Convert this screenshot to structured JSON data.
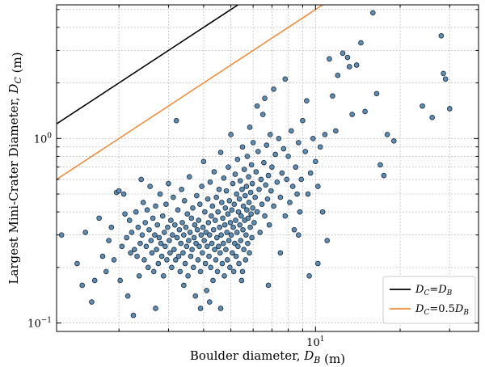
{
  "chart_data": {
    "type": "scatter",
    "title": "",
    "xlabel": "Boulder diameter, D_B (m)",
    "ylabel": "Largest Mini-Crater Diameter, D_C (m)",
    "xscale": "log",
    "yscale": "log",
    "xlim": [
      1.2,
      38
    ],
    "ylim": [
      0.09,
      5.3
    ],
    "x_tick_labels": [
      {
        "value": 10,
        "base": "10",
        "exp": "1"
      }
    ],
    "y_tick_labels": [
      {
        "value": 0.1,
        "base": "10",
        "exp": "−1"
      },
      {
        "value": 1,
        "base": "10",
        "exp": "0"
      }
    ],
    "grid": true,
    "legend_position": "lower-right",
    "series": [
      {
        "kind": "line",
        "name": "D_C = D_B",
        "label_parts": [
          "D",
          "C",
          "=",
          "D",
          "B",
          ""
        ],
        "color": "#000000",
        "slope": 1
      },
      {
        "kind": "line",
        "name": "D_C = 0.5D_B",
        "label_parts": [
          "D",
          "C",
          "=0.5",
          "D",
          "B",
          ""
        ],
        "color": "#f28e3b",
        "slope": 0.5
      },
      {
        "kind": "points",
        "color": "#5b8db5",
        "edge": "#1a2a3a",
        "points": [
          [
            1.25,
            0.3
          ],
          [
            1.42,
            0.21
          ],
          [
            1.48,
            0.16
          ],
          [
            1.52,
            0.31
          ],
          [
            1.6,
            0.13
          ],
          [
            1.64,
            0.17
          ],
          [
            1.7,
            0.37
          ],
          [
            1.75,
            0.23
          ],
          [
            1.8,
            0.19
          ],
          [
            1.84,
            0.28
          ],
          [
            1.88,
            0.33
          ],
          [
            1.92,
            0.22
          ],
          [
            1.96,
            0.51
          ],
          [
            2.0,
            0.52
          ],
          [
            2.02,
            0.17
          ],
          [
            2.05,
            0.26
          ],
          [
            2.08,
            0.5
          ],
          [
            2.1,
            0.39
          ],
          [
            2.13,
            0.29
          ],
          [
            2.15,
            0.14
          ],
          [
            2.18,
            0.36
          ],
          [
            2.2,
            0.24
          ],
          [
            2.22,
            0.31
          ],
          [
            2.25,
            0.11
          ],
          [
            2.27,
            0.25
          ],
          [
            2.3,
            0.4
          ],
          [
            2.32,
            0.23
          ],
          [
            2.34,
            0.33
          ],
          [
            2.36,
            0.18
          ],
          [
            2.38,
            0.27
          ],
          [
            2.4,
            0.6
          ],
          [
            2.42,
            0.3
          ],
          [
            2.44,
            0.45
          ],
          [
            2.46,
            0.22
          ],
          [
            2.48,
            0.35
          ],
          [
            2.5,
            0.26
          ],
          [
            2.52,
            0.41
          ],
          [
            2.54,
            0.2
          ],
          [
            2.56,
            0.32
          ],
          [
            2.58,
            0.55
          ],
          [
            2.6,
            0.28
          ],
          [
            2.62,
            0.24
          ],
          [
            2.64,
            0.37
          ],
          [
            2.66,
            0.19
          ],
          [
            2.68,
            0.3
          ],
          [
            2.7,
            0.43
          ],
          [
            2.72,
            0.25
          ],
          [
            2.74,
            0.34
          ],
          [
            2.76,
            0.21
          ],
          [
            2.78,
            0.29
          ],
          [
            2.8,
            0.5
          ],
          [
            2.82,
            0.27
          ],
          [
            2.84,
            0.23
          ],
          [
            2.86,
            0.38
          ],
          [
            2.88,
            0.18
          ],
          [
            2.9,
            0.31
          ],
          [
            2.92,
            0.26
          ],
          [
            2.94,
            0.44
          ],
          [
            2.96,
            0.22
          ],
          [
            2.98,
            0.33
          ],
          [
            3.0,
            0.57
          ],
          [
            3.02,
            0.28
          ],
          [
            3.04,
            0.24
          ],
          [
            3.06,
            0.36
          ],
          [
            3.08,
            0.2
          ],
          [
            3.1,
            0.3
          ],
          [
            3.12,
            0.48
          ],
          [
            3.14,
            0.25
          ],
          [
            3.16,
            0.34
          ],
          [
            3.18,
            0.22
          ],
          [
            3.2,
            1.25
          ],
          [
            3.22,
            0.29
          ],
          [
            3.24,
            0.41
          ],
          [
            3.26,
            0.23
          ],
          [
            3.28,
            0.32
          ],
          [
            3.3,
            0.19
          ],
          [
            3.32,
            0.27
          ],
          [
            3.34,
            0.53
          ],
          [
            3.36,
            0.35
          ],
          [
            3.38,
            0.24
          ],
          [
            3.4,
            0.3
          ],
          [
            3.42,
            0.46
          ],
          [
            3.44,
            0.21
          ],
          [
            3.46,
            0.33
          ],
          [
            3.48,
            0.26
          ],
          [
            3.5,
            0.39
          ],
          [
            3.52,
            0.18
          ],
          [
            3.54,
            0.28
          ],
          [
            3.56,
            0.62
          ],
          [
            3.58,
            0.31
          ],
          [
            3.6,
            0.23
          ],
          [
            3.62,
            0.37
          ],
          [
            3.64,
            0.25
          ],
          [
            3.66,
            0.42
          ],
          [
            3.68,
            0.2
          ],
          [
            3.7,
            0.29
          ],
          [
            3.72,
            0.34
          ],
          [
            3.74,
            0.14
          ],
          [
            3.76,
            0.27
          ],
          [
            3.78,
            0.49
          ],
          [
            3.8,
            0.32
          ],
          [
            3.82,
            0.22
          ],
          [
            3.84,
            0.36
          ],
          [
            3.86,
            0.26
          ],
          [
            3.88,
            0.44
          ],
          [
            3.9,
            0.19
          ],
          [
            3.92,
            0.3
          ],
          [
            3.94,
            0.55
          ],
          [
            3.96,
            0.24
          ],
          [
            3.98,
            0.33
          ],
          [
            4.0,
            0.75
          ],
          [
            4.02,
            0.28
          ],
          [
            4.04,
            0.4
          ],
          [
            4.06,
            0.21
          ],
          [
            4.08,
            0.31
          ],
          [
            4.1,
            0.15
          ],
          [
            4.12,
            0.26
          ],
          [
            4.14,
            0.47
          ],
          [
            4.16,
            0.35
          ],
          [
            4.18,
            0.23
          ],
          [
            4.2,
            0.3
          ],
          [
            4.22,
            0.58
          ],
          [
            4.24,
            0.2
          ],
          [
            4.26,
            0.38
          ],
          [
            4.28,
            0.27
          ],
          [
            4.3,
            0.43
          ],
          [
            4.32,
            0.17
          ],
          [
            4.34,
            0.32
          ],
          [
            4.36,
            0.66
          ],
          [
            4.38,
            0.25
          ],
          [
            4.4,
            0.36
          ],
          [
            4.42,
            0.22
          ],
          [
            4.44,
            0.48
          ],
          [
            4.46,
            0.29
          ],
          [
            4.48,
            0.19
          ],
          [
            4.5,
            0.4
          ],
          [
            4.52,
            0.26
          ],
          [
            4.54,
            0.53
          ],
          [
            4.56,
            0.33
          ],
          [
            4.58,
            0.24
          ],
          [
            4.6,
            0.84
          ],
          [
            4.62,
            0.3
          ],
          [
            4.64,
            0.45
          ],
          [
            4.66,
            0.21
          ],
          [
            4.68,
            0.37
          ],
          [
            4.7,
            0.27
          ],
          [
            4.72,
            0.61
          ],
          [
            4.74,
            0.18
          ],
          [
            4.76,
            0.34
          ],
          [
            4.78,
            0.42
          ],
          [
            4.8,
            0.25
          ],
          [
            4.82,
            0.52
          ],
          [
            4.84,
            0.31
          ],
          [
            4.86,
            0.22
          ],
          [
            4.88,
            0.39
          ],
          [
            4.9,
            0.7
          ],
          [
            4.92,
            0.28
          ],
          [
            4.94,
            0.46
          ],
          [
            4.96,
            0.2
          ],
          [
            4.98,
            0.35
          ],
          [
            5.0,
            1.05
          ],
          [
            5.02,
            0.3
          ],
          [
            5.04,
            0.41
          ],
          [
            5.06,
            0.24
          ],
          [
            5.08,
            0.57
          ],
          [
            5.1,
            0.33
          ],
          [
            5.12,
            0.19
          ],
          [
            5.14,
            0.44
          ],
          [
            5.16,
            0.27
          ],
          [
            5.18,
            0.64
          ],
          [
            5.2,
            0.36
          ],
          [
            5.22,
            0.23
          ],
          [
            5.24,
            0.5
          ],
          [
            5.26,
            0.31
          ],
          [
            5.28,
            0.77
          ],
          [
            5.3,
            0.26
          ],
          [
            5.32,
            0.4
          ],
          [
            5.34,
            0.21
          ],
          [
            5.36,
            0.47
          ],
          [
            5.38,
            0.34
          ],
          [
            5.4,
            0.59
          ],
          [
            5.42,
            0.28
          ],
          [
            5.44,
            0.38
          ],
          [
            5.46,
            0.17
          ],
          [
            5.48,
            0.53
          ],
          [
            5.5,
            0.9
          ],
          [
            5.52,
            0.32
          ],
          [
            5.54,
            0.43
          ],
          [
            5.56,
            0.25
          ],
          [
            5.58,
            0.68
          ],
          [
            5.6,
            0.36
          ],
          [
            5.62,
            0.49
          ],
          [
            5.64,
            0.22
          ],
          [
            5.66,
            0.3
          ],
          [
            5.68,
            0.55
          ],
          [
            5.7,
            0.41
          ],
          [
            5.72,
            0.8
          ],
          [
            5.74,
            0.27
          ],
          [
            5.76,
            0.37
          ],
          [
            5.78,
            0.62
          ],
          [
            5.8,
            0.45
          ],
          [
            5.82,
            0.24
          ],
          [
            5.84,
            1.15
          ],
          [
            5.86,
            0.33
          ],
          [
            5.88,
            0.51
          ],
          [
            5.9,
            0.39
          ],
          [
            5.92,
            0.72
          ],
          [
            5.94,
            0.29
          ],
          [
            5.96,
            0.57
          ],
          [
            5.98,
            0.42
          ],
          [
            6.0,
            0.95
          ],
          [
            6.05,
            0.35
          ],
          [
            6.1,
            0.48
          ],
          [
            6.15,
            0.66
          ],
          [
            6.2,
            0.4
          ],
          [
            6.25,
            0.85
          ],
          [
            6.3,
            0.53
          ],
          [
            6.35,
            0.31
          ],
          [
            6.4,
            0.6
          ],
          [
            6.45,
            0.44
          ],
          [
            6.5,
            1.35
          ],
          [
            6.55,
            0.74
          ],
          [
            6.6,
            0.38
          ],
          [
            6.65,
            0.56
          ],
          [
            6.7,
            0.92
          ],
          [
            6.75,
            0.47
          ],
          [
            6.8,
            0.63
          ],
          [
            6.85,
            0.34
          ],
          [
            6.9,
            1.05
          ],
          [
            6.95,
            0.52
          ],
          [
            7.0,
            0.7
          ],
          [
            7.1,
            0.43
          ],
          [
            7.2,
            0.82
          ],
          [
            7.3,
            0.58
          ],
          [
            7.4,
            1.0
          ],
          [
            7.5,
            0.48
          ],
          [
            7.6,
            0.65
          ],
          [
            7.7,
            0.88
          ],
          [
            7.8,
            0.38
          ],
          [
            7.9,
            0.6
          ],
          [
            8.0,
            0.8
          ],
          [
            8.1,
            0.45
          ],
          [
            8.2,
            1.1
          ],
          [
            8.3,
            0.55
          ],
          [
            8.4,
            0.32
          ],
          [
            8.5,
            0.7
          ],
          [
            8.6,
            0.5
          ],
          [
            8.7,
            0.95
          ],
          [
            8.8,
            0.4
          ],
          [
            8.9,
            0.6
          ],
          [
            9.0,
            1.25
          ],
          [
            9.2,
            0.85
          ],
          [
            9.4,
            0.5
          ],
          [
            9.6,
            0.65
          ],
          [
            9.8,
            1.0
          ],
          [
            10.0,
            0.75
          ],
          [
            10.2,
            0.55
          ],
          [
            10.4,
            0.9
          ],
          [
            10.6,
            0.4
          ],
          [
            10.8,
            1.05
          ],
          [
            6.2,
            1.5
          ],
          [
            6.6,
            1.65
          ],
          [
            7.1,
            1.85
          ],
          [
            7.8,
            2.1
          ],
          [
            9.3,
            1.6
          ],
          [
            10.2,
            0.21
          ],
          [
            11.0,
            0.28
          ],
          [
            11.2,
            2.7
          ],
          [
            11.5,
            1.7
          ],
          [
            12.0,
            2.2
          ],
          [
            12.5,
            2.9
          ],
          [
            13.0,
            2.75
          ],
          [
            13.5,
            1.35
          ],
          [
            14.0,
            2.5
          ],
          [
            14.5,
            3.3
          ],
          [
            15.0,
            1.4
          ],
          [
            16.0,
            4.8
          ],
          [
            16.5,
            1.75
          ],
          [
            17.0,
            0.72
          ],
          [
            17.5,
            0.63
          ],
          [
            18.0,
            1.05
          ],
          [
            19.0,
            0.97
          ],
          [
            24.0,
            1.5
          ],
          [
            26.0,
            1.3
          ],
          [
            28.0,
            3.6
          ],
          [
            28.5,
            2.25
          ],
          [
            29.0,
            2.1
          ],
          [
            30.0,
            1.45
          ],
          [
            13.2,
            2.45
          ],
          [
            11.8,
            1.1
          ],
          [
            4.2,
            0.13
          ],
          [
            4.6,
            0.12
          ],
          [
            3.9,
            0.12
          ],
          [
            5.5,
            0.19
          ],
          [
            6.8,
            0.16
          ],
          [
            7.5,
            0.24
          ],
          [
            8.7,
            0.3
          ],
          [
            9.5,
            0.18
          ],
          [
            3.4,
            0.16
          ],
          [
            2.7,
            0.12
          ]
        ]
      }
    ]
  }
}
